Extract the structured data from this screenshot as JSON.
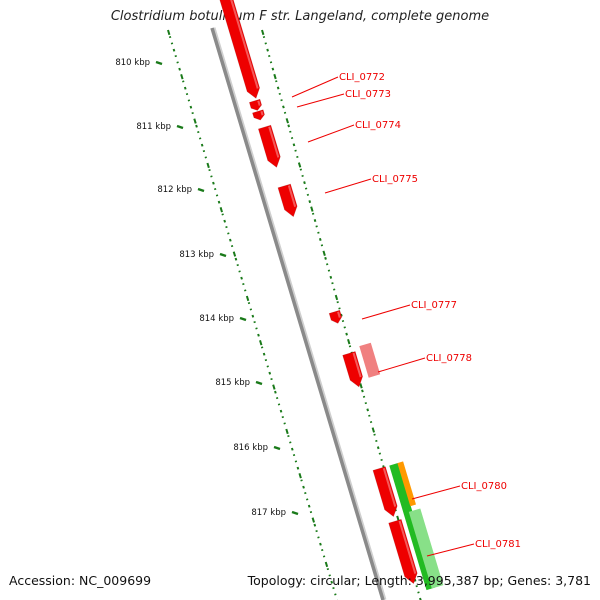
{
  "title": "Clostridium botulinum F str. Langeland, complete genome",
  "footer": {
    "accession": "Accession: NC_009699",
    "summary": "Topology: circular; Length: 3,995,387 bp; Genes: 3,781"
  },
  "colors": {
    "backbone": "#8a8a8a",
    "forward_gene": "#ee0000",
    "reverse_gene": "#ee0000",
    "pseudo_gene": "#f08080",
    "rna_gene": "#22bb22",
    "rna_gene_light": "#88e088",
    "other_gene": "#ff9900",
    "gc_ticks": "#1a7a1a",
    "label": "#ee0000"
  },
  "ticks": [
    {
      "label": "810 kbp"
    },
    {
      "label": "811 kbp"
    },
    {
      "label": "812 kbp"
    },
    {
      "label": "813 kbp"
    },
    {
      "label": "814 kbp"
    },
    {
      "label": "815 kbp"
    },
    {
      "label": "816 kbp"
    },
    {
      "label": "817 kbp"
    }
  ],
  "gene_labels": [
    {
      "name": "CLI_0772"
    },
    {
      "name": "CLI_0773"
    },
    {
      "name": "CLI_0774"
    },
    {
      "name": "CLI_0775"
    },
    {
      "name": "CLI_0777"
    },
    {
      "name": "CLI_0778"
    },
    {
      "name": "CLI_0780"
    },
    {
      "name": "CLI_0781"
    }
  ]
}
